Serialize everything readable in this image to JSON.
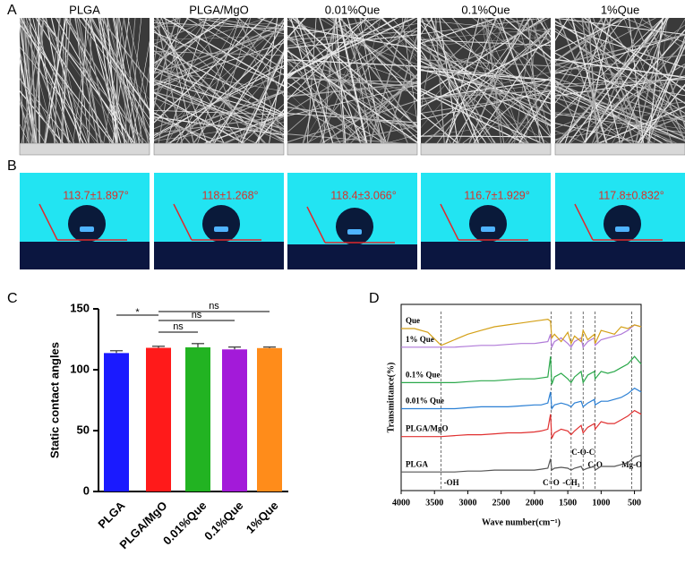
{
  "panels": {
    "A": {
      "letter": "A",
      "labels": [
        "PLGA",
        "PLGA/MgO",
        "0.01%Que",
        "0.1%Que",
        "1%Que"
      ]
    },
    "B": {
      "letter": "B",
      "labels": [
        "113.7±1.897°",
        "118±1.268°",
        "118.4±3.066°",
        "116.7±1.929°",
        "117.8±0.832°"
      ]
    },
    "C": {
      "letter": "C"
    },
    "D": {
      "letter": "D"
    }
  },
  "chart_data": [
    {
      "type": "bar",
      "ylabel": "Static contact angles",
      "categories": [
        "PLGA",
        "PLGA/MgO",
        "0.01%Que",
        "0.1%Que",
        "1%Que"
      ],
      "values": [
        113.7,
        118,
        118.4,
        116.7,
        117.8
      ],
      "errors": [
        1.897,
        1.268,
        3.066,
        1.929,
        0.832
      ],
      "colors": [
        "#1a1aff",
        "#ff1a1a",
        "#22b322",
        "#a31ad9",
        "#ff8c1a"
      ],
      "ylim": [
        0,
        150
      ],
      "yticks": [
        0,
        50,
        100,
        150
      ],
      "annotations": [
        "*",
        "ns",
        "ns",
        "ns"
      ]
    },
    {
      "type": "line",
      "xlabel": "Wave number(cm⁻¹)",
      "ylabel": "Transmittance(%)",
      "xlim": [
        4000,
        400
      ],
      "ylim": [
        0,
        100
      ],
      "xticks": [
        4000,
        3500,
        3000,
        2500,
        2000,
        1500,
        1000,
        500
      ],
      "x": [
        4000,
        3800,
        3600,
        3400,
        3200,
        3000,
        2800,
        2600,
        2400,
        2200,
        2000,
        1900,
        1800,
        1760,
        1740,
        1700,
        1600,
        1500,
        1450,
        1400,
        1300,
        1270,
        1200,
        1100,
        1090,
        1000,
        900,
        800,
        700,
        600,
        500,
        400
      ],
      "series": [
        {
          "name": "PLGA",
          "color": "#555555",
          "values": [
            10,
            10,
            10,
            10,
            10,
            10.5,
            10.5,
            11,
            11,
            11,
            11,
            11.5,
            12,
            17,
            11,
            12,
            12.5,
            12,
            11,
            12,
            13,
            11,
            12,
            13,
            11,
            13,
            13,
            13,
            14,
            15,
            18,
            19
          ]
        },
        {
          "name": "PLGA/MgO",
          "color": "#e03030",
          "values": [
            29,
            29,
            29,
            29,
            29.5,
            30,
            30,
            30.5,
            31,
            31,
            31.5,
            32,
            33,
            41,
            28,
            31,
            33,
            32,
            30,
            32,
            35,
            31,
            34,
            36,
            33,
            37,
            36,
            36,
            38,
            40,
            43,
            41
          ]
        },
        {
          "name": "0.01% Que",
          "color": "#2a7fd4",
          "values": [
            44,
            44,
            44,
            44,
            44,
            44.5,
            45,
            45,
            45,
            45.5,
            46,
            46,
            47,
            53,
            44,
            46,
            47,
            46,
            45,
            47,
            48,
            45,
            47,
            49,
            46,
            48,
            48,
            49,
            50,
            52,
            55,
            53
          ]
        },
        {
          "name": "0.1% Que",
          "color": "#2aa84a",
          "values": [
            58,
            58,
            58,
            58,
            58,
            58.5,
            59,
            59,
            59.5,
            60,
            60,
            60.5,
            61,
            72,
            57,
            61,
            63,
            60,
            58,
            61,
            64,
            58,
            62,
            64,
            60,
            64,
            63,
            64,
            66,
            68,
            72,
            68
          ]
        },
        {
          "name": "1% Que",
          "color": "#b07ad8",
          "values": [
            77,
            77,
            77,
            77,
            77,
            77.5,
            78,
            78,
            78.5,
            79,
            79,
            79.5,
            80,
            84,
            77,
            80,
            82,
            79,
            77,
            80,
            82,
            77,
            80,
            82,
            78,
            81,
            82,
            83,
            84,
            86,
            89,
            88
          ]
        },
        {
          "name": "Que",
          "color": "#d4a017",
          "values": [
            87,
            87,
            85,
            78,
            81,
            84,
            86,
            88,
            89,
            90,
            91,
            91.5,
            92,
            91,
            82,
            84,
            80,
            85,
            79,
            83,
            80,
            86,
            81,
            84,
            79,
            86,
            85,
            84,
            88,
            87,
            89,
            88
          ]
        }
      ],
      "annotations": [
        {
          "value": 3400,
          "label": "-OH"
        },
        {
          "value": 1750,
          "label": "C=O"
        },
        {
          "value": 1450,
          "label": "-CH₃"
        },
        {
          "value": 1270,
          "label": "C-O-C"
        },
        {
          "value": 1090,
          "label": "C-O"
        },
        {
          "value": 540,
          "label": "Mg-O"
        }
      ]
    }
  ]
}
